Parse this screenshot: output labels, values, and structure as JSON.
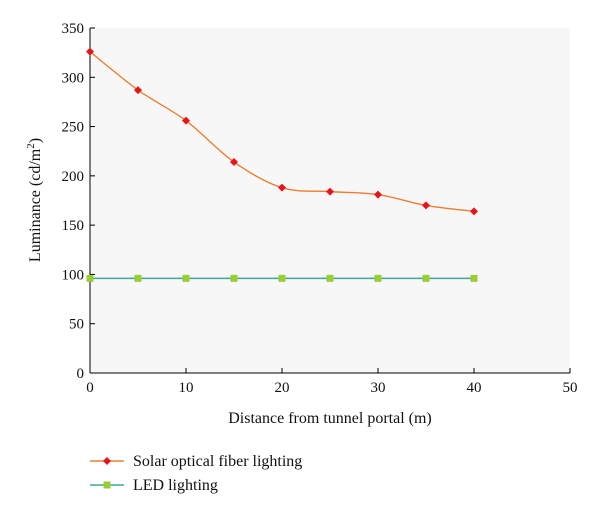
{
  "chart_data": {
    "type": "line",
    "title": "",
    "xlabel": "Distance from tunnel portal (m)",
    "ylabel_main": "Luminance (cd/m",
    "ylabel_sup": "2",
    "ylabel_close": ")",
    "xlim": [
      0,
      50
    ],
    "ylim": [
      0,
      350
    ],
    "xticks": [
      0,
      10,
      20,
      30,
      40,
      50
    ],
    "yticks": [
      0,
      50,
      100,
      150,
      200,
      250,
      300,
      350
    ],
    "grid": false,
    "legend_position": "bottom-left",
    "x": [
      0,
      5,
      10,
      15,
      20,
      25,
      30,
      35,
      40
    ],
    "series": [
      {
        "name": "Solar optical fiber lighting",
        "values": [
          326,
          287,
          256,
          214,
          188,
          184,
          181,
          170,
          164
        ],
        "line_color": "#ed7d31",
        "marker": "diamond",
        "marker_color": "#e8141c"
      },
      {
        "name": "LED lighting",
        "values": [
          96,
          96,
          96,
          96,
          96,
          96,
          96,
          96,
          96
        ],
        "line_color": "#3aa89a",
        "marker": "square",
        "marker_color": "#9bcd33"
      }
    ]
  }
}
